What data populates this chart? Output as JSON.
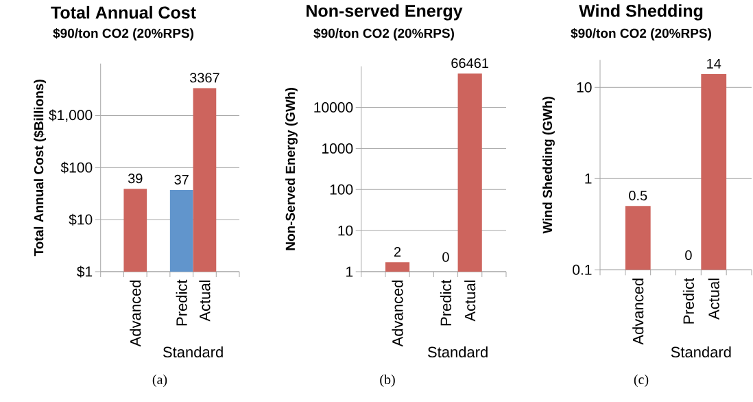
{
  "chart_data": [
    {
      "type": "bar",
      "title": "Total Annual Cost",
      "subtitle": "$90/ton CO2 (20%RPS)",
      "ylabel": "Total Annual Cost ($Billions)",
      "categories": [
        null,
        "Advanced",
        null,
        "Predict",
        "Actual",
        null
      ],
      "values": [
        null,
        39,
        null,
        37,
        3367,
        null
      ],
      "colors": [
        null,
        "#cd645d",
        null,
        "#6195cc",
        "#cd645d",
        null
      ],
      "log": true,
      "ylim": [
        1,
        10000
      ],
      "yticks": [
        {
          "value": 1,
          "label": "$1"
        },
        {
          "value": 10,
          "label": "$10"
        },
        {
          "value": 100,
          "label": "$100"
        },
        {
          "value": 1000,
          "label": "$1,000"
        }
      ],
      "grid": "y",
      "data_labels": true,
      "annotations": [
        "Standard",
        "(a)"
      ]
    },
    {
      "type": "bar",
      "title": "Non-served Energy",
      "subtitle": "$90/ton CO2 (20%RPS)",
      "ylabel": "Non-Served Energy (GWh)",
      "categories": [
        null,
        "Advanced",
        null,
        "Predict",
        "Actual",
        null
      ],
      "values": [
        null,
        1.7,
        null,
        null,
        66461,
        null
      ],
      "colors": [
        null,
        "#cd645d",
        null,
        "#cd645d",
        "#cd645d",
        null
      ],
      "log": true,
      "ylim": [
        1,
        100000
      ],
      "yticks": [
        1,
        10,
        100,
        1000,
        10000
      ],
      "grid": "y",
      "value_labels": [
        null,
        "2",
        null,
        "0",
        "66461",
        null
      ],
      "annotations": [
        "Standard",
        "(b)"
      ]
    },
    {
      "type": "bar",
      "title": "Wind Shedding",
      "subtitle": "$90/ton CO2 (20%RPS)",
      "ylabel": "Wind Shedding (GWh)",
      "categories": [
        null,
        "Advanced",
        null,
        "Predict",
        "Actual",
        null
      ],
      "values": [
        null,
        0.5,
        null,
        null,
        14,
        null
      ],
      "colors": [
        null,
        "#cd645d",
        null,
        "#cd645d",
        "#cd645d",
        null
      ],
      "log": true,
      "ylim": [
        0.1,
        20
      ],
      "yticks": [
        0.1,
        1,
        10
      ],
      "grid": "y",
      "value_labels": [
        null,
        "0.5",
        null,
        "0",
        "14",
        null
      ],
      "annotations": [
        "Standard",
        "(c)"
      ]
    }
  ]
}
